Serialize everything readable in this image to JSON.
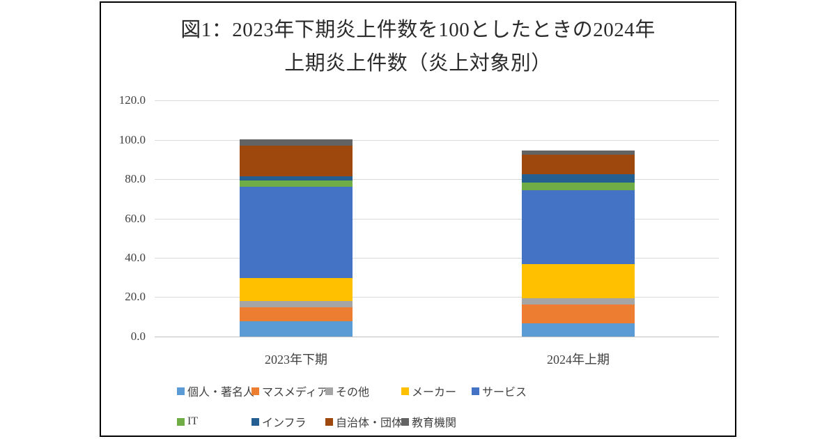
{
  "chart_data": {
    "type": "bar",
    "subtype": "stacked-vertical",
    "title_lines": [
      "図1：2023年下期炎上件数を100としたときの2024年",
      "上期炎上件数（炎上対象別）"
    ],
    "title": "図1：2023年下期炎上件数を100としたときの2024年上期炎上件数（炎上対象別）",
    "categories": [
      "2023年下期",
      "2024年上期"
    ],
    "series": [
      {
        "name": "個人・著名人",
        "color": "#5B9BD5",
        "values": [
          7.8,
          6.8
        ]
      },
      {
        "name": "マスメディア",
        "color": "#ED7D31",
        "values": [
          7.1,
          9.5
        ]
      },
      {
        "name": "その他",
        "color": "#A5A5A5",
        "values": [
          3.0,
          3.1
        ]
      },
      {
        "name": "メーカー",
        "color": "#FFC000",
        "values": [
          11.9,
          17.4
        ]
      },
      {
        "name": "サービス",
        "color": "#4472C4",
        "values": [
          46.5,
          37.6
        ]
      },
      {
        "name": "IT",
        "color": "#70AD47",
        "values": [
          3.1,
          3.9
        ]
      },
      {
        "name": "インフラ",
        "color": "#255E91",
        "values": [
          2.1,
          4.3
        ]
      },
      {
        "name": "自治体・団体",
        "color": "#9E480E",
        "values": [
          15.4,
          9.9
        ]
      },
      {
        "name": "教育機関",
        "color": "#636363",
        "values": [
          3.2,
          2.2
        ]
      }
    ],
    "totals": [
      100.0,
      94.7
    ],
    "y_axis": {
      "min": 0,
      "max": 120,
      "step": 20,
      "tick_labels": [
        "0.0",
        "20.0",
        "40.0",
        "60.0",
        "80.0",
        "100.0",
        "120.0"
      ]
    },
    "grid": true,
    "legend_position": "bottom",
    "colors": {
      "gridline": "#d9d9d9",
      "axis_line": "#bfbfbf",
      "text": "#404040"
    }
  }
}
